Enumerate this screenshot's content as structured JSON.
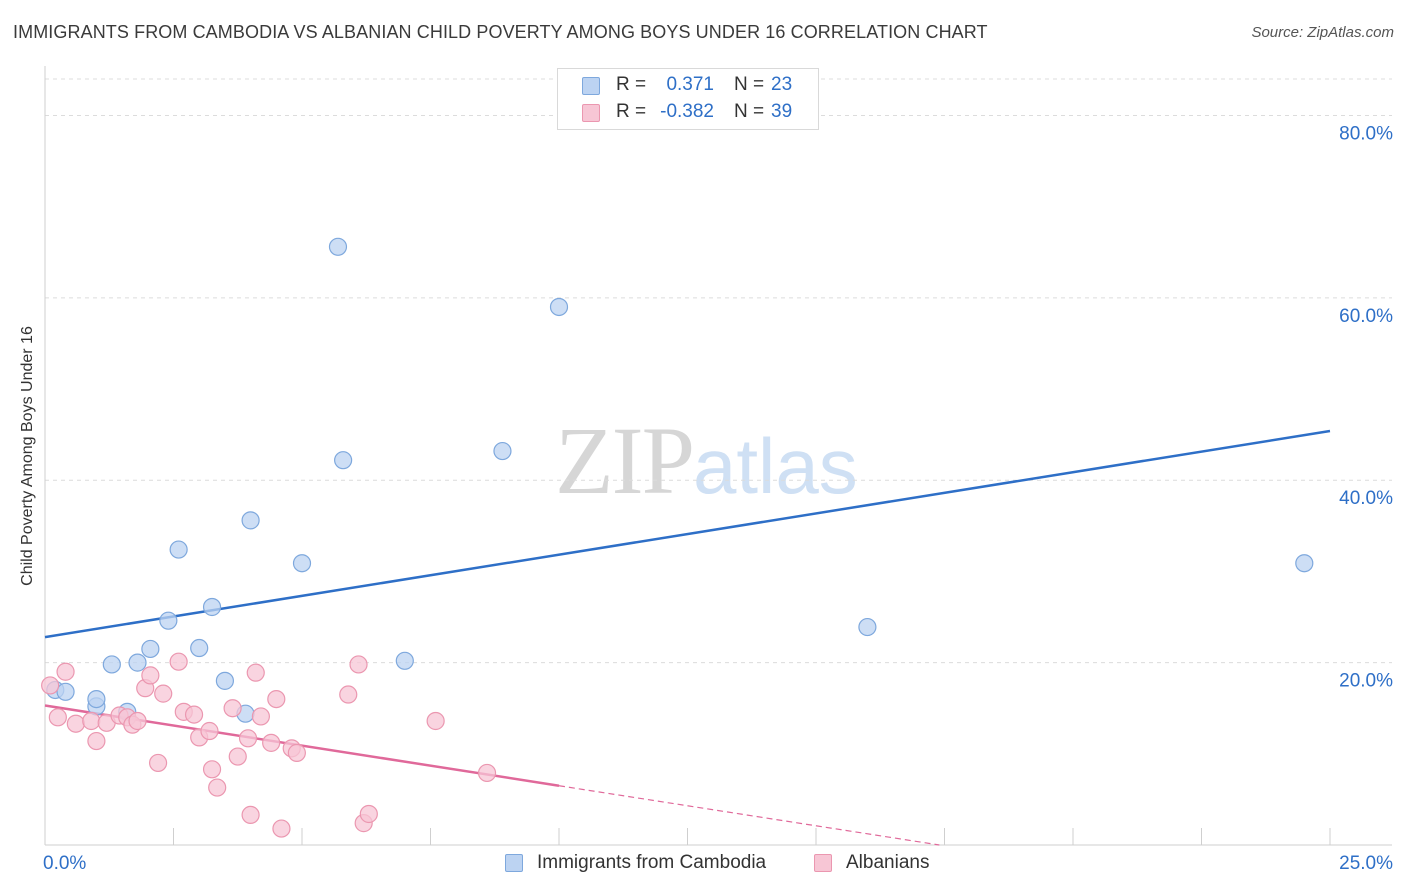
{
  "header": {
    "title": "IMMIGRANTS FROM CAMBODIA VS ALBANIAN CHILD POVERTY AMONG BOYS UNDER 16 CORRELATION CHART",
    "source": "Source: ZipAtlas.com"
  },
  "watermark": {
    "part1": "ZIP",
    "part2": "atlas"
  },
  "legend": {
    "rows": [
      {
        "r_label": "R =",
        "r_value": "0.371",
        "n_label": "N =",
        "n_value": "23"
      },
      {
        "r_label": "R =",
        "r_value": "-0.382",
        "n_label": "N =",
        "n_value": "39"
      }
    ]
  },
  "colors": {
    "series_a_fill": "#bcd3f2",
    "series_a_stroke": "#7ea8dd",
    "series_a_line": "#2e6fc7",
    "series_b_fill": "#f7c6d5",
    "series_b_stroke": "#eb97b0",
    "series_b_line": "#e0699a",
    "axis_label": "#2e6fc7",
    "grid": "#dcdcdc"
  },
  "chart_data": {
    "type": "scatter",
    "title": "IMMIGRANTS FROM CAMBODIA VS ALBANIAN CHILD POVERTY AMONG BOYS UNDER 16 CORRELATION CHART",
    "xlabel": "",
    "ylabel": "Child Poverty Among Boys Under 16",
    "xlim": [
      0,
      25
    ],
    "ylim": [
      0,
      84
    ],
    "x_tick_labels": [
      {
        "value": 0,
        "label": "0.0%"
      },
      {
        "value": 25,
        "label": "25.0%"
      }
    ],
    "y_tick_labels": [
      {
        "value": 20,
        "label": "20.0%"
      },
      {
        "value": 40,
        "label": "40.0%"
      },
      {
        "value": 60,
        "label": "60.0%"
      },
      {
        "value": 80,
        "label": "80.0%"
      }
    ],
    "x_minor_ticks": [
      0,
      2.5,
      5,
      7.5,
      10,
      12.5,
      15,
      17.5,
      20,
      22.5,
      25
    ],
    "grid": true,
    "legend_position": "top-center",
    "series": [
      {
        "name": "Immigrants from Cambodia",
        "r": 0.371,
        "n": 23,
        "points": [
          [
            0.2,
            17.0
          ],
          [
            0.4,
            16.8
          ],
          [
            1.0,
            15.2
          ],
          [
            1.0,
            16.0
          ],
          [
            1.3,
            19.8
          ],
          [
            1.6,
            14.6
          ],
          [
            1.8,
            20.0
          ],
          [
            2.05,
            21.5
          ],
          [
            2.4,
            24.6
          ],
          [
            2.6,
            32.4
          ],
          [
            3.0,
            21.6
          ],
          [
            3.25,
            26.1
          ],
          [
            3.5,
            18.0
          ],
          [
            3.9,
            14.4
          ],
          [
            4.0,
            35.6
          ],
          [
            5.0,
            30.9
          ],
          [
            5.7,
            65.6
          ],
          [
            5.8,
            42.2
          ],
          [
            7.0,
            20.2
          ],
          [
            8.9,
            43.2
          ],
          [
            10.0,
            59.0
          ],
          [
            16.0,
            23.9
          ],
          [
            24.5,
            30.9
          ]
        ],
        "trend": {
          "x": [
            0,
            25
          ],
          "y": [
            22.8,
            45.4
          ]
        }
      },
      {
        "name": "Albanians",
        "r": -0.382,
        "n": 39,
        "points": [
          [
            0.1,
            17.5
          ],
          [
            0.25,
            14.0
          ],
          [
            0.4,
            19.0
          ],
          [
            0.6,
            13.3
          ],
          [
            0.9,
            13.6
          ],
          [
            1.0,
            11.4
          ],
          [
            1.2,
            13.4
          ],
          [
            1.45,
            14.2
          ],
          [
            1.6,
            14.0
          ],
          [
            1.7,
            13.2
          ],
          [
            1.8,
            13.6
          ],
          [
            1.95,
            17.2
          ],
          [
            2.05,
            18.6
          ],
          [
            2.2,
            9.0
          ],
          [
            2.3,
            16.6
          ],
          [
            2.6,
            20.1
          ],
          [
            2.7,
            14.6
          ],
          [
            2.9,
            14.3
          ],
          [
            3.0,
            11.8
          ],
          [
            3.2,
            12.5
          ],
          [
            3.25,
            8.3
          ],
          [
            3.35,
            6.3
          ],
          [
            3.65,
            15.0
          ],
          [
            3.75,
            9.7
          ],
          [
            3.95,
            11.7
          ],
          [
            4.0,
            3.3
          ],
          [
            4.1,
            18.9
          ],
          [
            4.2,
            14.1
          ],
          [
            4.4,
            11.2
          ],
          [
            4.5,
            16.0
          ],
          [
            4.6,
            1.8
          ],
          [
            4.8,
            10.6
          ],
          [
            4.9,
            10.1
          ],
          [
            5.9,
            16.5
          ],
          [
            6.1,
            19.8
          ],
          [
            6.2,
            2.4
          ],
          [
            6.3,
            3.4
          ],
          [
            7.6,
            13.6
          ],
          [
            8.6,
            7.9
          ]
        ],
        "trend": {
          "x": [
            0,
            10
          ],
          "y": [
            15.3,
            6.5
          ]
        },
        "trend_extension": {
          "x": [
            10,
            17.4
          ],
          "y": [
            6.5,
            0
          ]
        }
      }
    ]
  },
  "bottom_legend": {
    "items": [
      {
        "label": "Immigrants from Cambodia"
      },
      {
        "label": "Albanians"
      }
    ]
  }
}
